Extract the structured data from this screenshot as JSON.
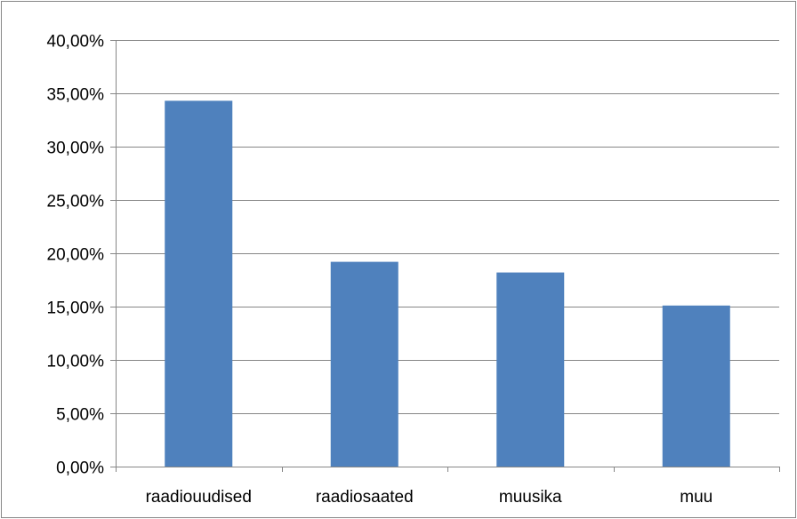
{
  "chart_data": {
    "type": "bar",
    "categories": [
      "raadiouudised",
      "raadiosaated",
      "muusika",
      "muu"
    ],
    "values": [
      34.3,
      19.2,
      18.2,
      15.1
    ],
    "ylim": [
      0,
      40
    ],
    "yticks": [
      0,
      5,
      10,
      15,
      20,
      25,
      30,
      35,
      40
    ],
    "ytick_labels": [
      "0,00%",
      "5,00%",
      "10,00%",
      "15,00%",
      "20,00%",
      "25,00%",
      "30,00%",
      "35,00%",
      "40,00%"
    ],
    "title": "",
    "xlabel": "",
    "ylabel": "",
    "grid": true,
    "legend": false,
    "colors": {
      "bar": "#4f81bd",
      "grid": "#868686",
      "border": "#868686",
      "text": "#000000"
    }
  }
}
